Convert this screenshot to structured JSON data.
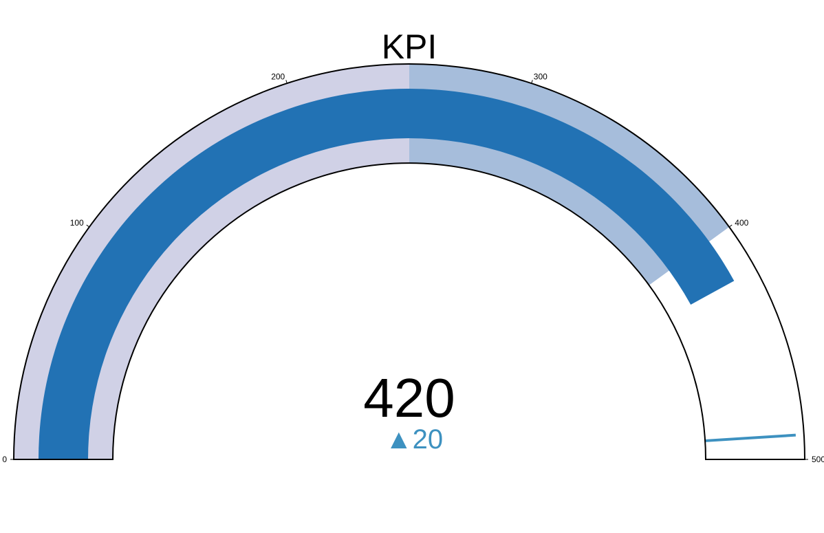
{
  "chart_data": {
    "type": "gauge",
    "title": "KPI",
    "value": 420,
    "value_text": "420",
    "delta": {
      "value": 20,
      "symbol": "▲",
      "text": "20",
      "reference": 400,
      "color": "#3d91c0"
    },
    "axis": {
      "range": [
        0,
        500
      ],
      "ticks": [
        0,
        100,
        200,
        300,
        400,
        500
      ],
      "tick_labels": [
        "0",
        "100",
        "200",
        "300",
        "400",
        "500"
      ]
    },
    "bar": {
      "value": 420,
      "color": "#2272b4"
    },
    "steps": [
      {
        "range": [
          0,
          250
        ],
        "color": "#d0d1e6"
      },
      {
        "range": [
          250,
          400
        ],
        "color": "#a6bddb"
      }
    ],
    "threshold": {
      "value": 490,
      "color": "#3d91c0"
    },
    "colors": {
      "outline": "#000000",
      "background": "#ffffff"
    }
  }
}
